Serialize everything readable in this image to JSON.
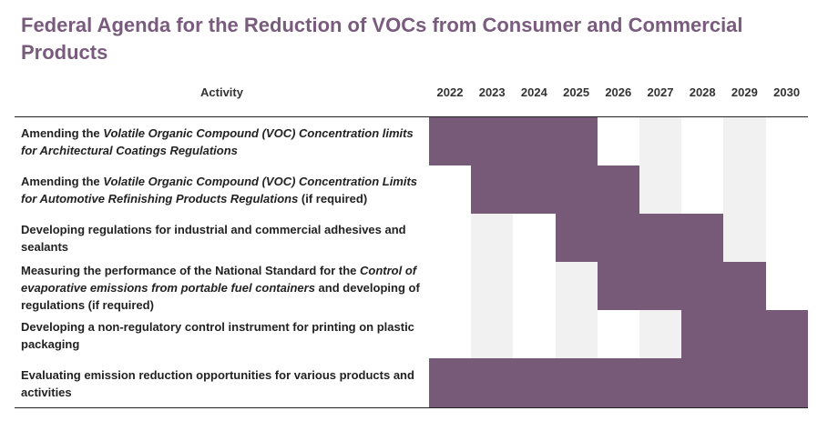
{
  "title": "Federal Agenda for the Reduction of VOCs from Consumer and Commercial Products",
  "table": {
    "activity_header": "Activity",
    "years": [
      "2022",
      "2023",
      "2024",
      "2025",
      "2026",
      "2027",
      "2028",
      "2029",
      "2030"
    ],
    "rows": [
      {
        "segments": [
          {
            "text": "Amending the ",
            "italic": false
          },
          {
            "text": "Volatile Organic Compound (VOC) Concentration limits for Architectural Coatings Regulations",
            "italic": true
          }
        ],
        "start_year": "2022",
        "end_year": "2025"
      },
      {
        "segments": [
          {
            "text": "Amending the ",
            "italic": false
          },
          {
            "text": "Volatile Organic Compound (VOC) Concentration Limits for Automotive Refinishing Products Regulations",
            "italic": true
          },
          {
            "text": " (if required)",
            "italic": false
          }
        ],
        "start_year": "2023",
        "end_year": "2026"
      },
      {
        "segments": [
          {
            "text": "Developing regulations for industrial and commercial adhesives and sealants",
            "italic": false
          }
        ],
        "start_year": "2025",
        "end_year": "2028"
      },
      {
        "segments": [
          {
            "text": "Measuring the performance of the National Standard for the ",
            "italic": false
          },
          {
            "text": "Control of evaporative emissions from portable fuel containers",
            "italic": true
          },
          {
            "text": " and developing of regulations (if required)",
            "italic": false
          }
        ],
        "start_year": "2026",
        "end_year": "2029"
      },
      {
        "segments": [
          {
            "text": "Developing a non-regulatory control instrument for printing on plastic packaging",
            "italic": false
          }
        ],
        "start_year": "2028",
        "end_year": "2030"
      },
      {
        "segments": [
          {
            "text": "Evaluating emission reduction opportunities for various products and activities",
            "italic": false
          }
        ],
        "start_year": "2022",
        "end_year": "2030"
      }
    ]
  },
  "colors": {
    "title": "#795c7d",
    "bar": "#765a77",
    "alt_column": "#f1f1f1"
  }
}
